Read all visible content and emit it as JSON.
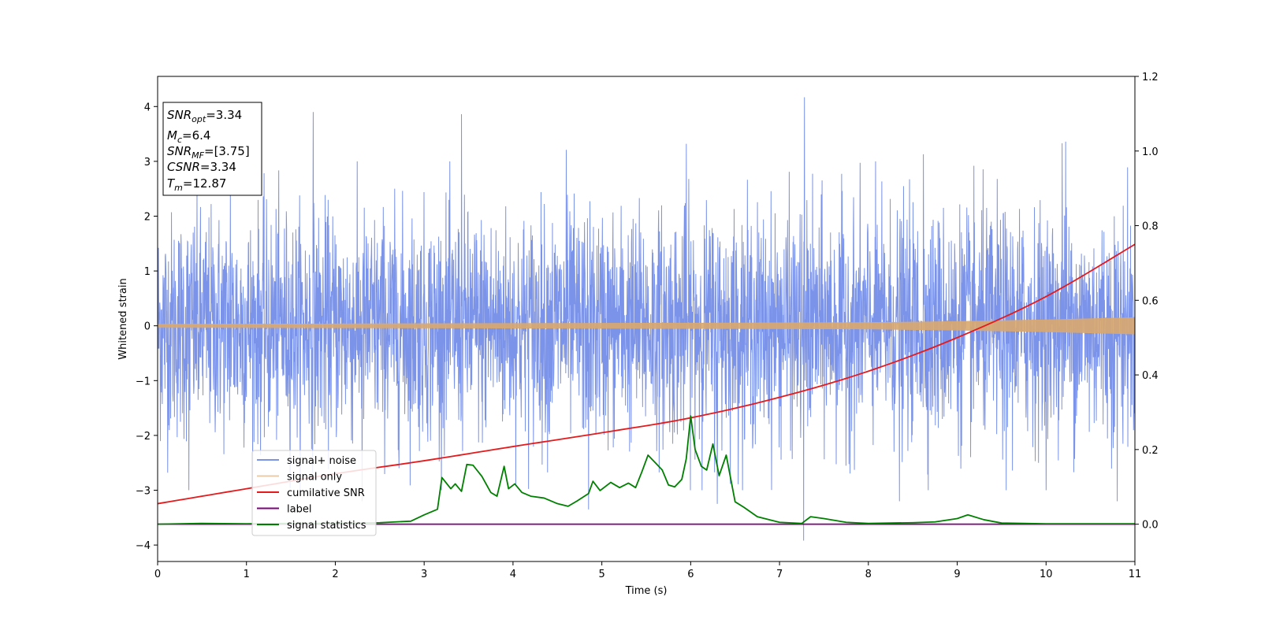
{
  "chart_data": {
    "type": "line",
    "xlabel": "Time (s)",
    "ylabel": "Whitened strain",
    "xlim": [
      0,
      11
    ],
    "ylim": [
      -4.3,
      4.55
    ],
    "y2lim": [
      -0.1,
      1.2
    ],
    "x_ticks": [
      0,
      1,
      2,
      3,
      4,
      5,
      6,
      7,
      8,
      9,
      10,
      11
    ],
    "y_ticks": [
      -4,
      -3,
      -2,
      -1,
      0,
      1,
      2,
      3,
      4
    ],
    "y2_ticks": [
      "0.0",
      "0.2",
      "0.4",
      "0.6",
      "0.8",
      "1.0",
      "1.2"
    ],
    "grid": false,
    "legend_position": "lower-left",
    "info_box": {
      "snr_opt": {
        "base": "SNR",
        "sub": "opt",
        "value": "=3.34"
      },
      "mc": {
        "base": "M",
        "sub": "c",
        "value": "=6.4"
      },
      "snr_mf": {
        "base": "SNR",
        "sub": "MF",
        "value": "=[3.75]"
      },
      "csnr": {
        "base": "CSNR",
        "value": "=3.34"
      },
      "tm": {
        "base": "T",
        "sub": "m",
        "value": "=12.87"
      }
    },
    "series": [
      {
        "name": "signal+ noise",
        "axis": "left",
        "color": "#7b93e8",
        "noise_band": {
          "x_range": [
            0,
            11
          ],
          "typical_envelope": [
            -2.3,
            2.4
          ],
          "max_peak": 4.17,
          "min_peak": -3.92
        },
        "spikes": [
          [
            1.75,
            3.9
          ],
          [
            3.42,
            3.86
          ],
          [
            7.28,
            4.17
          ],
          [
            7.27,
            -3.92
          ],
          [
            5.95,
            3.32
          ],
          [
            10.22,
            3.36
          ],
          [
            10.18,
            3.33
          ],
          [
            0.82,
            2.6
          ],
          [
            4.6,
            3.21
          ],
          [
            8.62,
            3.13
          ],
          [
            9.55,
            -3.0
          ],
          [
            0.35,
            -3.0
          ],
          [
            2.3,
            -3.2
          ],
          [
            4.85,
            -3.35
          ],
          [
            6.3,
            -3.25
          ],
          [
            8.35,
            -3.2
          ],
          [
            10.8,
            -3.2
          ]
        ]
      },
      {
        "name": "signal only",
        "axis": "left",
        "color": "#d9a86e",
        "points": [
          [
            0,
            0.03
          ],
          [
            3,
            0.04
          ],
          [
            6,
            0.05
          ],
          [
            8,
            0.06
          ],
          [
            9,
            0.08
          ],
          [
            10,
            0.11
          ],
          [
            11,
            0.15
          ]
        ]
      },
      {
        "name": "cumilative SNR",
        "axis": "right",
        "color": "#e41a1c",
        "points": [
          [
            0,
            0.055
          ],
          [
            1,
            0.095
          ],
          [
            2,
            0.135
          ],
          [
            3,
            0.17
          ],
          [
            4,
            0.208
          ],
          [
            5,
            0.245
          ],
          [
            6,
            0.285
          ],
          [
            7,
            0.34
          ],
          [
            8,
            0.41
          ],
          [
            9,
            0.5
          ],
          [
            10,
            0.61
          ],
          [
            11,
            0.75
          ]
        ]
      },
      {
        "name": "label",
        "axis": "right",
        "color": "#800080",
        "points": [
          [
            0,
            0.0
          ],
          [
            11,
            0.0
          ]
        ]
      },
      {
        "name": "signal statistics",
        "axis": "right",
        "color": "#008000",
        "points": [
          [
            0,
            0.0
          ],
          [
            0.5,
            0.002
          ],
          [
            1.0,
            0.001
          ],
          [
            1.5,
            0.002
          ],
          [
            2.0,
            0.002
          ],
          [
            2.5,
            0.004
          ],
          [
            2.85,
            0.008
          ],
          [
            3.0,
            0.025
          ],
          [
            3.15,
            0.04
          ],
          [
            3.2,
            0.125
          ],
          [
            3.3,
            0.095
          ],
          [
            3.35,
            0.108
          ],
          [
            3.42,
            0.088
          ],
          [
            3.48,
            0.16
          ],
          [
            3.55,
            0.158
          ],
          [
            3.65,
            0.128
          ],
          [
            3.75,
            0.085
          ],
          [
            3.82,
            0.075
          ],
          [
            3.9,
            0.155
          ],
          [
            3.95,
            0.095
          ],
          [
            4.02,
            0.108
          ],
          [
            4.1,
            0.085
          ],
          [
            4.2,
            0.075
          ],
          [
            4.35,
            0.07
          ],
          [
            4.5,
            0.055
          ],
          [
            4.62,
            0.048
          ],
          [
            4.72,
            0.062
          ],
          [
            4.85,
            0.082
          ],
          [
            4.9,
            0.115
          ],
          [
            4.98,
            0.09
          ],
          [
            5.1,
            0.112
          ],
          [
            5.2,
            0.098
          ],
          [
            5.3,
            0.11
          ],
          [
            5.38,
            0.098
          ],
          [
            5.45,
            0.14
          ],
          [
            5.52,
            0.185
          ],
          [
            5.6,
            0.165
          ],
          [
            5.68,
            0.145
          ],
          [
            5.75,
            0.105
          ],
          [
            5.82,
            0.1
          ],
          [
            5.9,
            0.12
          ],
          [
            5.95,
            0.175
          ],
          [
            6.0,
            0.29
          ],
          [
            6.05,
            0.2
          ],
          [
            6.12,
            0.155
          ],
          [
            6.18,
            0.145
          ],
          [
            6.25,
            0.215
          ],
          [
            6.32,
            0.13
          ],
          [
            6.4,
            0.185
          ],
          [
            6.5,
            0.06
          ],
          [
            6.6,
            0.045
          ],
          [
            6.75,
            0.02
          ],
          [
            7.0,
            0.005
          ],
          [
            7.25,
            0.002
          ],
          [
            7.35,
            0.02
          ],
          [
            7.5,
            0.015
          ],
          [
            7.75,
            0.005
          ],
          [
            8.0,
            0.002
          ],
          [
            8.5,
            0.004
          ],
          [
            8.75,
            0.006
          ],
          [
            9.0,
            0.015
          ],
          [
            9.12,
            0.025
          ],
          [
            9.3,
            0.012
          ],
          [
            9.5,
            0.003
          ],
          [
            10.0,
            0.001
          ],
          [
            10.5,
            0.001
          ],
          [
            11,
            0.001
          ]
        ]
      }
    ]
  }
}
